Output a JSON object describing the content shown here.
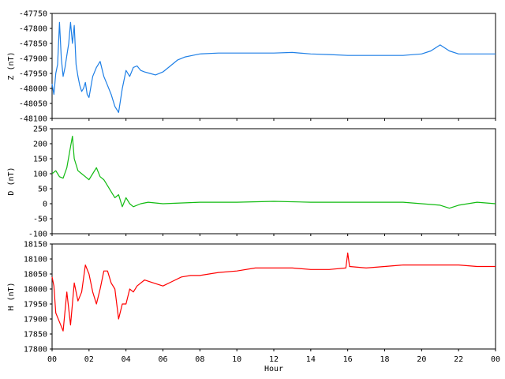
{
  "chart_data": [
    {
      "type": "line",
      "ylabel": "Z (nT)",
      "ylim": [
        -48100,
        -47750
      ],
      "yticks": [
        "-47750",
        "-47800",
        "-47850",
        "-47900",
        "-47950",
        "-48000",
        "-48050",
        "-48100"
      ],
      "color": "#1e7fe6",
      "x": [
        0,
        0.1,
        0.2,
        0.3,
        0.4,
        0.5,
        0.6,
        0.7,
        0.8,
        0.9,
        1.0,
        1.1,
        1.2,
        1.3,
        1.4,
        1.5,
        1.6,
        1.7,
        1.8,
        1.9,
        2.0,
        2.2,
        2.4,
        2.6,
        2.8,
        3.0,
        3.2,
        3.4,
        3.6,
        3.8,
        4.0,
        4.2,
        4.4,
        4.6,
        4.8,
        5.0,
        5.3,
        5.6,
        6.0,
        6.4,
        6.8,
        7.2,
        7.6,
        8.0,
        9,
        10,
        11,
        12,
        13,
        14,
        15,
        16,
        17,
        18,
        19,
        20,
        20.5,
        21.0,
        21.5,
        22,
        23,
        24
      ],
      "y": [
        -47985,
        -48020,
        -47950,
        -47920,
        -47780,
        -47900,
        -47960,
        -47930,
        -47890,
        -47850,
        -47780,
        -47850,
        -47790,
        -47920,
        -47960,
        -47990,
        -48010,
        -48000,
        -47980,
        -48020,
        -48030,
        -47960,
        -47930,
        -47910,
        -47960,
        -47990,
        -48020,
        -48060,
        -48080,
        -48000,
        -47940,
        -47960,
        -47930,
        -47925,
        -47940,
        -47945,
        -47950,
        -47955,
        -47945,
        -47925,
        -47905,
        -47895,
        -47890,
        -47885,
        -47882,
        -47882,
        -47882,
        -47882,
        -47880,
        -47885,
        -47887,
        -47890,
        -47890,
        -47890,
        -47890,
        -47885,
        -47875,
        -47855,
        -47875,
        -47885,
        -47885,
        -47885
      ]
    },
    {
      "type": "line",
      "ylabel": "D (nT)",
      "ylim": [
        -100,
        250
      ],
      "yticks": [
        "250",
        "200",
        "150",
        "100",
        "50",
        "0",
        "-50",
        "-100"
      ],
      "color": "#11bb11",
      "x": [
        0,
        0.2,
        0.4,
        0.6,
        0.8,
        1.0,
        1.1,
        1.2,
        1.4,
        1.6,
        1.8,
        2.0,
        2.2,
        2.4,
        2.6,
        2.8,
        3.0,
        3.2,
        3.4,
        3.6,
        3.8,
        4.0,
        4.2,
        4.4,
        4.8,
        5.2,
        6,
        8,
        10,
        12,
        14,
        16,
        18,
        19,
        20,
        21,
        21.5,
        22,
        23,
        24
      ],
      "y": [
        100,
        110,
        90,
        85,
        120,
        190,
        225,
        150,
        110,
        100,
        90,
        80,
        100,
        120,
        90,
        80,
        60,
        40,
        20,
        30,
        -10,
        20,
        0,
        -10,
        0,
        5,
        0,
        5,
        5,
        8,
        5,
        5,
        5,
        5,
        0,
        -5,
        -15,
        -5,
        5,
        0
      ]
    },
    {
      "type": "line",
      "ylabel": "H (nT)",
      "ylim": [
        17800,
        18150
      ],
      "yticks": [
        "18150",
        "18100",
        "18050",
        "18000",
        "17950",
        "17900",
        "17850",
        "17800"
      ],
      "color": "#ff0000",
      "x": [
        0,
        0.1,
        0.2,
        0.4,
        0.6,
        0.8,
        1.0,
        1.2,
        1.4,
        1.6,
        1.8,
        2.0,
        2.2,
        2.4,
        2.6,
        2.8,
        3.0,
        3.2,
        3.4,
        3.6,
        3.8,
        4.0,
        4.2,
        4.4,
        4.6,
        5.0,
        5.5,
        6.0,
        6.5,
        7.0,
        7.5,
        8,
        9,
        10,
        11,
        12,
        13,
        14,
        15,
        15.9,
        16.0,
        16.1,
        17,
        18,
        19,
        20,
        21,
        22,
        23,
        24
      ],
      "y": [
        18040,
        18010,
        17920,
        17890,
        17860,
        17990,
        17880,
        18020,
        17960,
        17990,
        18080,
        18050,
        17990,
        17950,
        18000,
        18060,
        18060,
        18020,
        18000,
        17900,
        17950,
        17950,
        18000,
        17990,
        18010,
        18030,
        18020,
        18010,
        18025,
        18040,
        18045,
        18045,
        18055,
        18060,
        18070,
        18070,
        18070,
        18065,
        18065,
        18070,
        18120,
        18075,
        18070,
        18075,
        18080,
        18080,
        18080,
        18080,
        18075,
        18075
      ]
    }
  ],
  "x_axis": {
    "label": "Hour",
    "xlim": [
      0,
      24
    ],
    "ticks": [
      "00",
      "02",
      "04",
      "06",
      "08",
      "10",
      "12",
      "14",
      "16",
      "18",
      "20",
      "22",
      "00"
    ]
  }
}
